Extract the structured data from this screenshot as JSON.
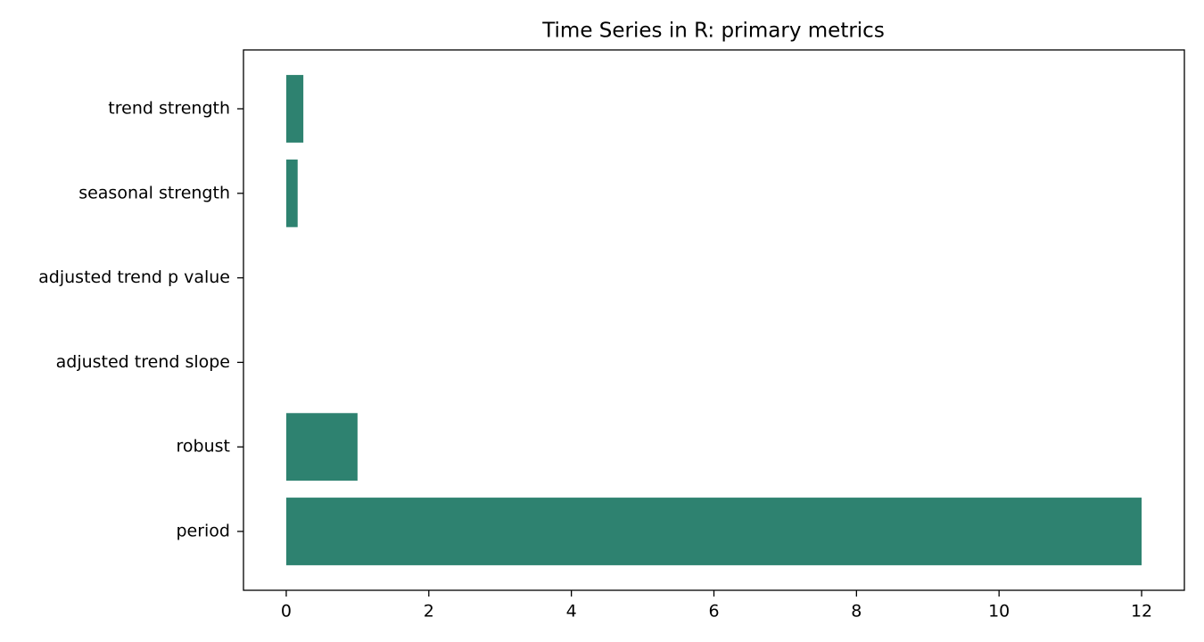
{
  "chart_data": {
    "type": "barh",
    "title": "Time Series in R: primary metrics",
    "categories": [
      "trend strength",
      "seasonal strength",
      "adjusted trend p value",
      "adjusted trend slope",
      "robust",
      "period"
    ],
    "values": [
      0.24,
      0.16,
      0,
      0,
      1,
      12
    ],
    "color": "#2e8270",
    "xlim": [
      -0.6,
      12.6
    ],
    "xticks": [
      0,
      2,
      4,
      6,
      8,
      10,
      12
    ]
  }
}
